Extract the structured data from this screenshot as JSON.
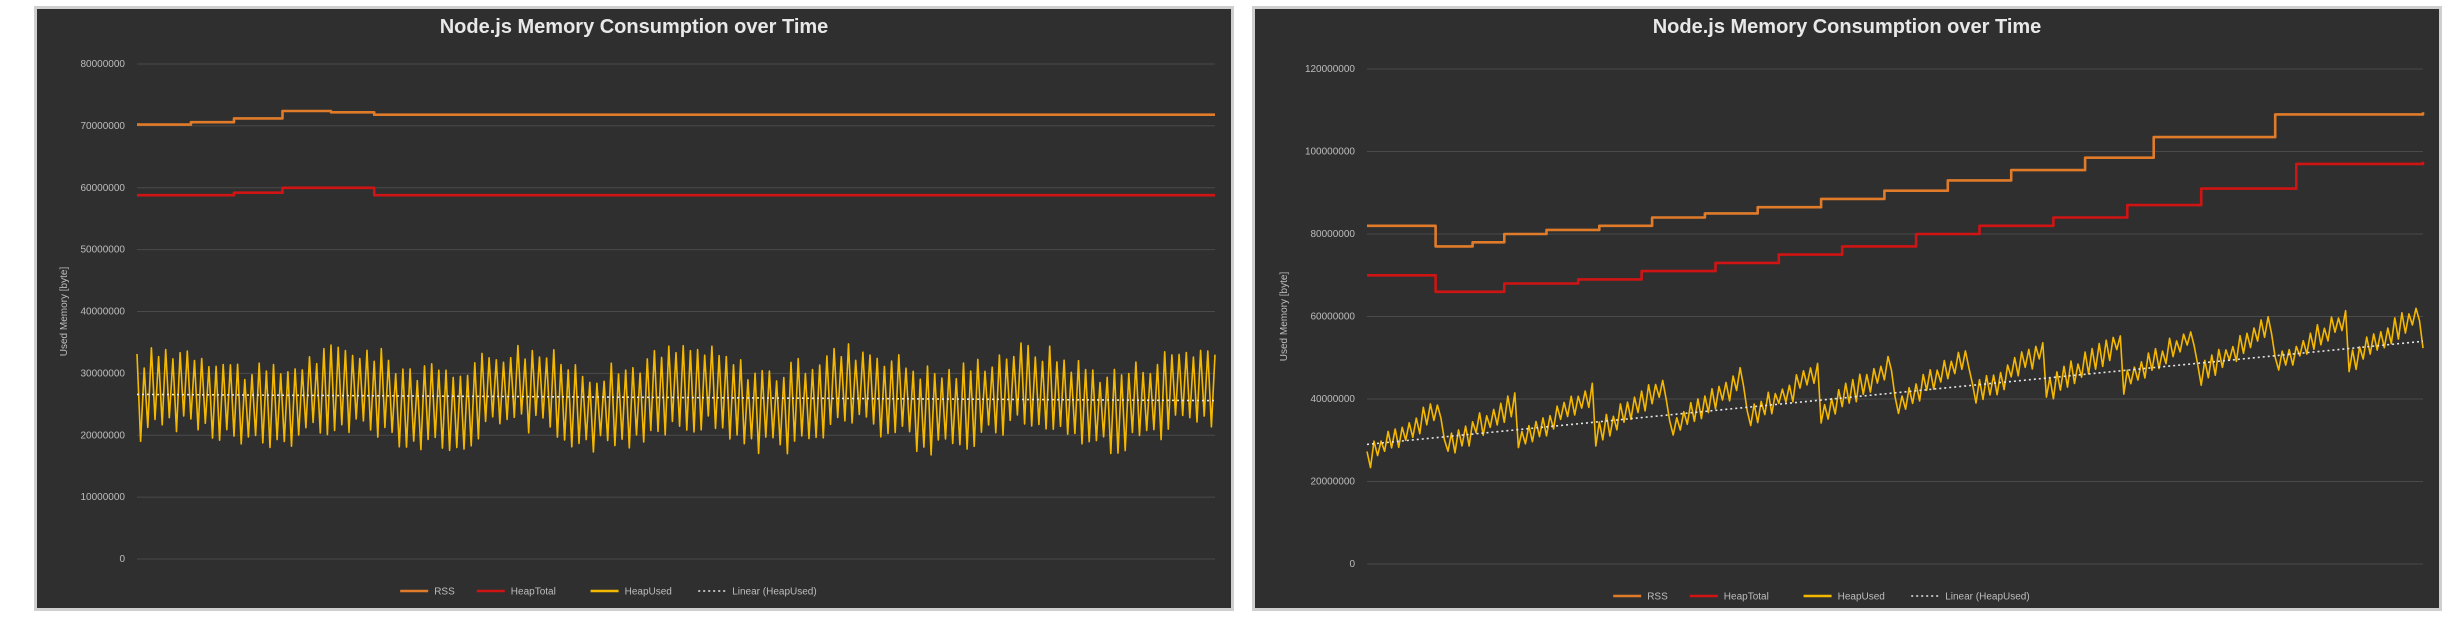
{
  "chart_data": [
    {
      "type": "line",
      "title": "Node.js Memory Consumption over Time",
      "xlabel": "",
      "ylabel": "Used Memory [byte]",
      "ylim": [
        0,
        80000000
      ],
      "yticks": [
        "80000000",
        "70000000",
        "60000000",
        "50000000",
        "40000000",
        "30000000",
        "20000000",
        "10000000",
        "0"
      ],
      "grid": true,
      "legend_position": "bottom",
      "series": [
        {
          "name": "RSS",
          "color": "#e07b2a",
          "style": "solid",
          "steps": [
            [
              0,
              70200000
            ],
            [
              0.05,
              70600000
            ],
            [
              0.09,
              71200000
            ],
            [
              0.135,
              72400000
            ],
            [
              0.18,
              72200000
            ],
            [
              0.22,
              71800000
            ],
            [
              1,
              71800000
            ]
          ]
        },
        {
          "name": "HeapTotal",
          "color": "#d01414",
          "style": "solid",
          "steps": [
            [
              0,
              58800000
            ],
            [
              0.09,
              59200000
            ],
            [
              0.135,
              60000000
            ],
            [
              0.22,
              58800000
            ],
            [
              1,
              58800000
            ]
          ]
        },
        {
          "name": "HeapUsed",
          "color": "#f5b800",
          "style": "solid",
          "pattern": {
            "count": 300,
            "base": 26000000,
            "trend": 0,
            "amp": 7500000,
            "sawtooth": 0
          }
        },
        {
          "name": "Linear  (HeapUsed)",
          "color": "#e6e6e6",
          "style": "dotted",
          "linear": [
            26600000,
            25600000
          ]
        }
      ]
    },
    {
      "type": "line",
      "title": "Node.js Memory Consumption over Time",
      "xlabel": "",
      "ylabel": "Used Memory [byte]",
      "ylim": [
        0,
        120000000
      ],
      "yticks": [
        "120000000",
        "100000000",
        "80000000",
        "60000000",
        "40000000",
        "20000000",
        "0"
      ],
      "grid": true,
      "legend_position": "bottom",
      "series": [
        {
          "name": "RSS",
          "color": "#e07b2a",
          "style": "solid",
          "steps": [
            [
              0,
              82000000
            ],
            [
              0.065,
              77000000
            ],
            [
              0.1,
              78000000
            ],
            [
              0.13,
              80000000
            ],
            [
              0.17,
              81000000
            ],
            [
              0.22,
              82000000
            ],
            [
              0.27,
              84000000
            ],
            [
              0.32,
              85000000
            ],
            [
              0.37,
              86500000
            ],
            [
              0.43,
              88500000
            ],
            [
              0.49,
              90500000
            ],
            [
              0.55,
              93000000
            ],
            [
              0.61,
              95500000
            ],
            [
              0.68,
              98500000
            ],
            [
              0.745,
              103500000
            ],
            [
              0.82,
              103500000
            ],
            [
              0.86,
              109000000
            ],
            [
              1,
              109500000
            ]
          ]
        },
        {
          "name": "HeapTotal",
          "color": "#d01414",
          "style": "solid",
          "steps": [
            [
              0,
              70000000
            ],
            [
              0.065,
              66000000
            ],
            [
              0.13,
              68000000
            ],
            [
              0.2,
              69000000
            ],
            [
              0.26,
              71000000
            ],
            [
              0.33,
              73000000
            ],
            [
              0.39,
              75000000
            ],
            [
              0.45,
              77000000
            ],
            [
              0.52,
              80000000
            ],
            [
              0.58,
              82000000
            ],
            [
              0.65,
              84000000
            ],
            [
              0.72,
              87000000
            ],
            [
              0.79,
              91000000
            ],
            [
              0.88,
              97000000
            ],
            [
              1,
              97500000
            ]
          ]
        },
        {
          "name": "HeapUsed",
          "color": "#f5b800",
          "style": "solid",
          "pattern": {
            "count": 300,
            "base": 30000000,
            "trend": 25000000,
            "amp": 6500000,
            "sawtooth": 14
          }
        },
        {
          "name": "Linear  (HeapUsed)",
          "color": "#e6e6e6",
          "style": "dotted",
          "linear": [
            29000000,
            54000000
          ]
        }
      ]
    }
  ]
}
